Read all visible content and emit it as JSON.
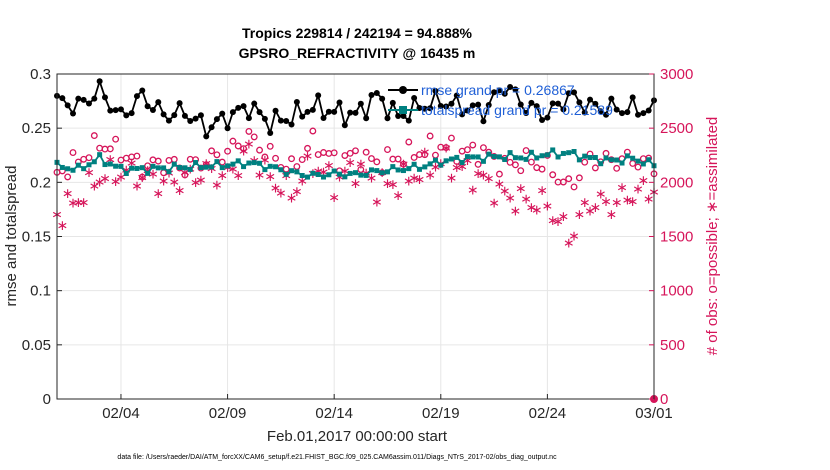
{
  "chart_data": {
    "type": "line",
    "title_line1": "Tropics 229814 / 242194 = 94.888%",
    "title_line2": "GPSRO_REFRACTIVITY @ 16435 m",
    "xlabel": "Feb.01,2017 00:00:00 start",
    "ylabel_left": "rmse and totalspread",
    "ylabel_right": "# of obs: o=possible; ∗=assimilated",
    "footnote": "data file: /Users/raeder/DAI/ATM_forcXX/CAM6_setup/f.e21.FHIST_BGC.f09_025.CAM6assim.011/Diags_NTrS_2017-02/obs_diag_output.nc",
    "x_ticks": [
      {
        "day": 3,
        "label": "02/04"
      },
      {
        "day": 8,
        "label": "02/09"
      },
      {
        "day": 13,
        "label": "02/14"
      },
      {
        "day": 18,
        "label": "02/19"
      },
      {
        "day": 23,
        "label": "02/24"
      },
      {
        "day": 28,
        "label": "03/01"
      }
    ],
    "xlim": [
      0,
      28
    ],
    "ylim_left": [
      0,
      0.3
    ],
    "ylim_right": [
      0,
      3000
    ],
    "yticks_left": [
      "0",
      "0.05",
      "0.1",
      "0.15",
      "0.2",
      "0.25",
      "0.3"
    ],
    "yticks_right": [
      "0",
      "500",
      "1000",
      "1500",
      "2000",
      "2500",
      "3000"
    ],
    "grid": true,
    "colors": {
      "rmse": "#000000",
      "spread": "#008080",
      "obs": "#d6155a",
      "legend_text": "#1f5fd6"
    },
    "legend": [
      {
        "name": "rmse",
        "label": "rmse grand pr = 0.26867"
      },
      {
        "name": "totalspread",
        "label": "totalspread grand pr = 0.21589"
      }
    ],
    "rmse_anchor_values": [
      0.275,
      0.27,
      0.285,
      0.26,
      0.28,
      0.262,
      0.265,
      0.25,
      0.26,
      0.27,
      0.255,
      0.26,
      0.27,
      0.265,
      0.262,
      0.28,
      0.26,
      0.27,
      0.275,
      0.27,
      0.265,
      0.29,
      0.27,
      0.262,
      0.28,
      0.27,
      0.268,
      0.268,
      0.266
    ],
    "spread_anchor_values": [
      0.215,
      0.212,
      0.222,
      0.212,
      0.212,
      0.213,
      0.214,
      0.215,
      0.216,
      0.218,
      0.214,
      0.209,
      0.206,
      0.208,
      0.207,
      0.21,
      0.212,
      0.214,
      0.219,
      0.222,
      0.223,
      0.224,
      0.223,
      0.226,
      0.227,
      0.222,
      0.22,
      0.222,
      0.216
    ],
    "possible_anchor_values": [
      2080,
      2200,
      2360,
      2280,
      2140,
      2180,
      2140,
      2200,
      2280,
      2420,
      2250,
      2120,
      2380,
      2200,
      2250,
      2180,
      2230,
      2280,
      2340,
      2280,
      2280,
      2150,
      2200,
      2150,
      1950,
      2210,
      2200,
      2210,
      2150
    ],
    "assimilated_anchor_values": [
      1700,
      1850,
      2060,
      2100,
      2070,
      2000,
      2040,
      2100,
      2060,
      2300,
      2040,
      1900,
      2180,
      2000,
      2150,
      1970,
      2000,
      2100,
      2200,
      2130,
      2030,
      1880,
      1830,
      1800,
      1500,
      1820,
      1800,
      1900,
      1950
    ],
    "final_obs_value": 0
  }
}
